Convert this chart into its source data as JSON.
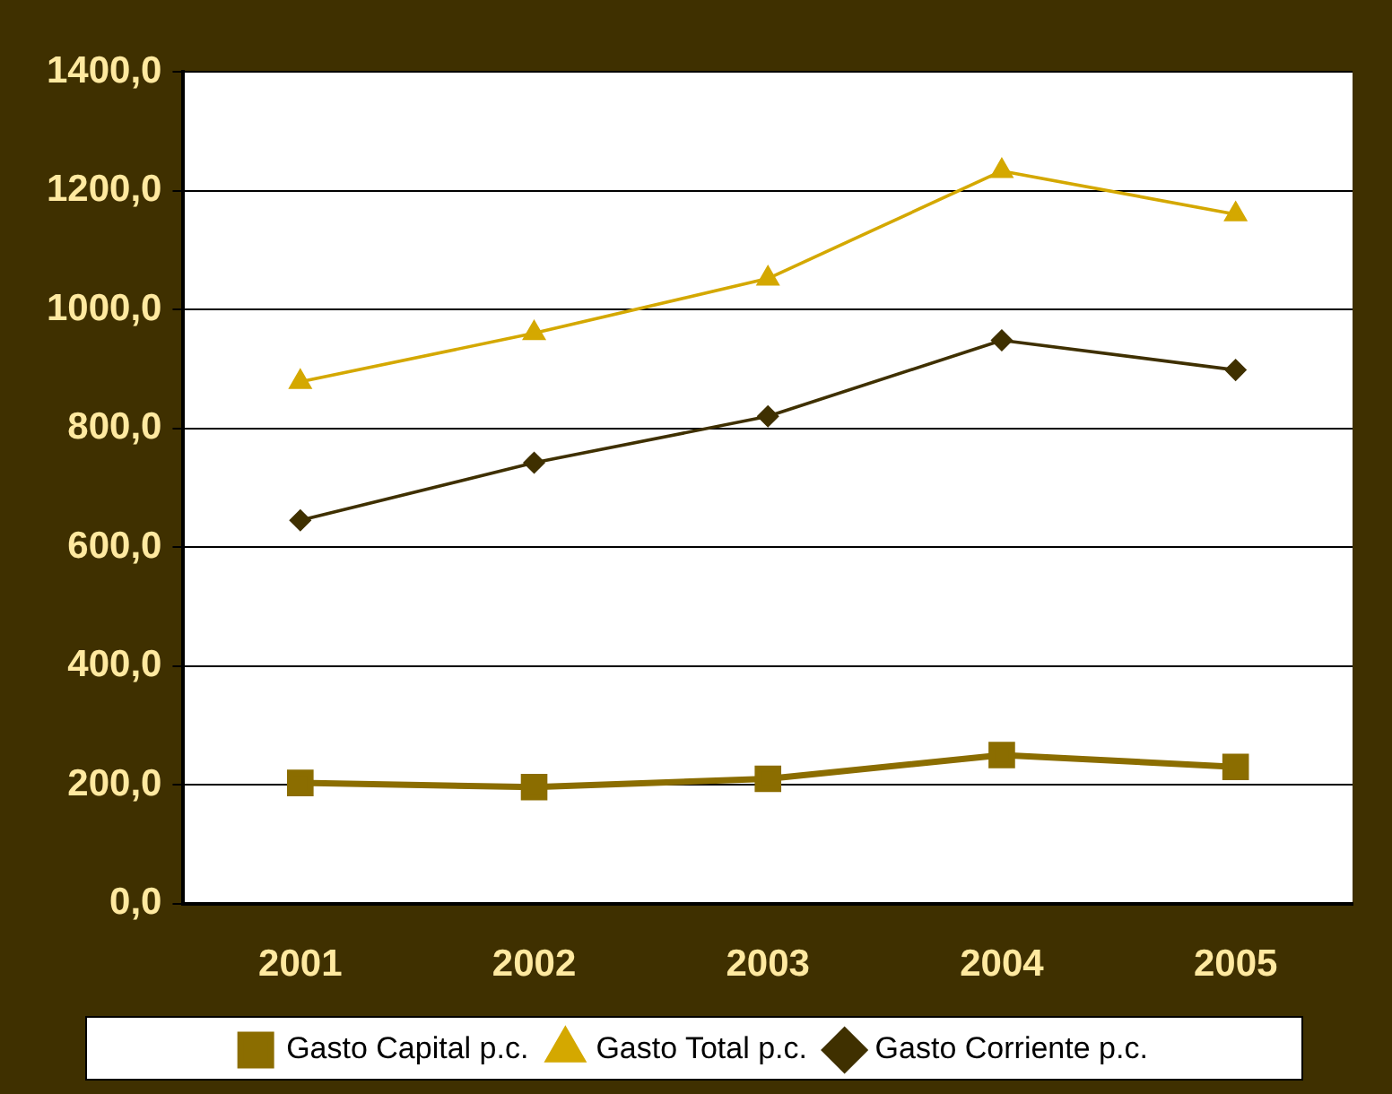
{
  "chart_data": {
    "type": "line",
    "categories": [
      "2001",
      "2002",
      "2003",
      "2004",
      "2005"
    ],
    "series": [
      {
        "name": "Gasto Capital p.c.",
        "color": "#8b6d00",
        "marker": "square",
        "values": [
          203,
          196,
          210,
          250,
          230
        ]
      },
      {
        "name": "Gasto Total p.c.",
        "color": "#d4a800",
        "marker": "triangle",
        "values": [
          878,
          960,
          1052,
          1233,
          1160
        ]
      },
      {
        "name": "Gasto Corriente p.c.",
        "color": "#3f3000",
        "marker": "diamond",
        "values": [
          645,
          742,
          820,
          948,
          898
        ]
      }
    ],
    "ylim": [
      0,
      1400
    ],
    "yticks": [
      {
        "value": 0,
        "label": "0,0"
      },
      {
        "value": 200,
        "label": "200,0"
      },
      {
        "value": 400,
        "label": "400,0"
      },
      {
        "value": 600,
        "label": "600,0"
      },
      {
        "value": 800,
        "label": "800,0"
      },
      {
        "value": 1000,
        "label": "1000,0"
      },
      {
        "value": 1200,
        "label": "1200,0"
      },
      {
        "value": 1400,
        "label": "1400,0"
      }
    ],
    "grid": "y",
    "legend": "bottom"
  }
}
